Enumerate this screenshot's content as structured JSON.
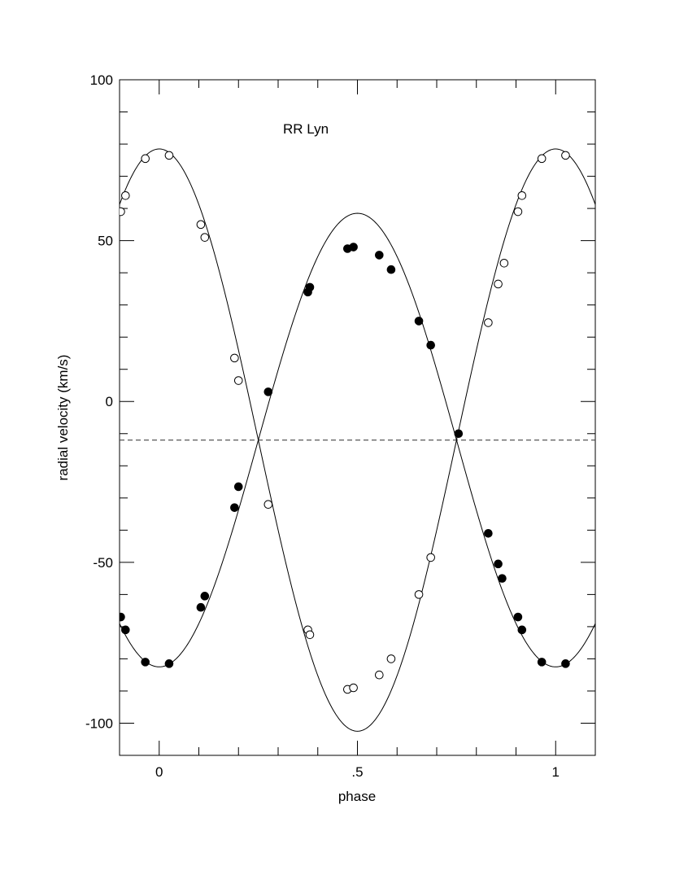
{
  "chart_data": {
    "type": "scatter",
    "title": "RR Lyn",
    "xlabel": "phase",
    "ylabel": "radial velocity (km/s)",
    "xlim": [
      -0.1,
      1.1
    ],
    "ylim": [
      -110,
      100
    ],
    "x_ticks": [
      {
        "value": 0,
        "label": "0"
      },
      {
        "value": 0.5,
        "label": ".5"
      },
      {
        "value": 1,
        "label": "1"
      }
    ],
    "y_ticks": [
      {
        "value": 100,
        "label": "100"
      },
      {
        "value": 50,
        "label": "50"
      },
      {
        "value": 0,
        "label": "0"
      },
      {
        "value": -50,
        "label": "-50"
      },
      {
        "value": -100,
        "label": "-100"
      }
    ],
    "systemic_velocity": -12,
    "series": [
      {
        "marker": "open-circle",
        "color": "#000000",
        "points": [
          [
            -0.097,
            59
          ],
          [
            -0.085,
            64
          ],
          [
            -0.035,
            75.5
          ],
          [
            0.025,
            76.5
          ],
          [
            0.105,
            55
          ],
          [
            0.115,
            51
          ],
          [
            0.19,
            13.5
          ],
          [
            0.2,
            6.5
          ],
          [
            0.275,
            -32
          ],
          [
            0.375,
            -71
          ],
          [
            0.38,
            -72.5
          ],
          [
            0.475,
            -89.5
          ],
          [
            0.49,
            -89
          ],
          [
            0.555,
            -85
          ],
          [
            0.585,
            -80
          ],
          [
            0.655,
            -60
          ],
          [
            0.685,
            -48.5
          ],
          [
            0.83,
            24.5
          ],
          [
            0.855,
            36.5
          ],
          [
            0.87,
            43
          ],
          [
            0.905,
            59
          ],
          [
            0.915,
            64
          ],
          [
            0.965,
            75.5
          ],
          [
            1.025,
            76.5
          ]
        ]
      },
      {
        "marker": "filled-circle",
        "color": "#000000",
        "points": [
          [
            -0.097,
            -67
          ],
          [
            -0.085,
            -71
          ],
          [
            -0.035,
            -81
          ],
          [
            0.025,
            -81.5
          ],
          [
            0.105,
            -64
          ],
          [
            0.115,
            -60.5
          ],
          [
            0.19,
            -33
          ],
          [
            0.2,
            -26.5
          ],
          [
            0.275,
            3
          ],
          [
            0.375,
            34
          ],
          [
            0.38,
            35.5
          ],
          [
            0.475,
            47.5
          ],
          [
            0.49,
            48
          ],
          [
            0.555,
            45.5
          ],
          [
            0.585,
            41
          ],
          [
            0.655,
            25
          ],
          [
            0.685,
            17.5
          ],
          [
            0.755,
            -10
          ],
          [
            0.83,
            -41
          ],
          [
            0.855,
            -50.5
          ],
          [
            0.865,
            -55
          ],
          [
            0.905,
            -67
          ],
          [
            0.915,
            -71
          ],
          [
            0.965,
            -81
          ],
          [
            1.025,
            -81.5
          ]
        ]
      }
    ],
    "fits": [
      {
        "gamma": -12,
        "amplitude": -90.5,
        "phase_offset": 0.25
      },
      {
        "gamma": -12,
        "amplitude": 70.5,
        "phase_offset": 0.25
      }
    ]
  }
}
